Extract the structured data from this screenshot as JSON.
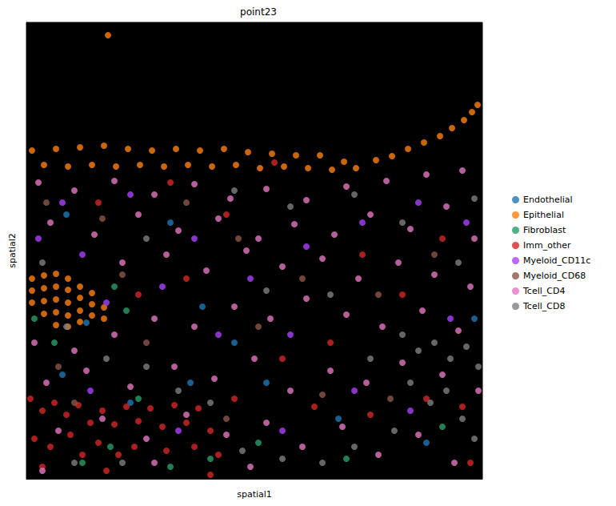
{
  "chart_data": {
    "type": "scatter",
    "title": "point23",
    "x_label": "spatial1",
    "y_label": "spatial2",
    "xlim": [
      0,
      570
    ],
    "ylim": [
      0,
      570
    ],
    "tick_labels": false,
    "grid": false,
    "legend": "right",
    "series": [
      {
        "name": "Endothelial",
        "color": "#1f77b4",
        "values": [
          [
            50,
            330
          ],
          [
            180,
            320
          ],
          [
            220,
            215
          ],
          [
            300,
            120
          ],
          [
            45,
            130
          ],
          [
            130,
            95
          ],
          [
            205,
            120
          ],
          [
            390,
            75
          ],
          [
            500,
            45
          ],
          [
            560,
            200
          ],
          [
            75,
            195
          ],
          [
            260,
            170
          ]
        ]
      },
      {
        "name": "Epithelial",
        "color": "#ff7f0e",
        "values": [
          [
            7,
            410
          ],
          [
            22,
            392
          ],
          [
            37,
            412
          ],
          [
            52,
            390
          ],
          [
            67,
            414
          ],
          [
            82,
            392
          ],
          [
            97,
            416
          ],
          [
            112,
            390
          ],
          [
            127,
            412
          ],
          [
            142,
            392
          ],
          [
            157,
            410
          ],
          [
            172,
            390
          ],
          [
            187,
            412
          ],
          [
            202,
            392
          ],
          [
            217,
            410
          ],
          [
            232,
            390
          ],
          [
            247,
            412
          ],
          [
            262,
            392
          ],
          [
            277,
            408
          ],
          [
            292,
            388
          ],
          [
            307,
            406
          ],
          [
            322,
            390
          ],
          [
            337,
            404
          ],
          [
            352,
            388
          ],
          [
            367,
            404
          ],
          [
            382,
            386
          ],
          [
            397,
            396
          ],
          [
            412,
            388
          ],
          [
            437,
            398
          ],
          [
            457,
            403
          ],
          [
            477,
            412
          ],
          [
            497,
            420
          ],
          [
            517,
            428
          ],
          [
            532,
            438
          ],
          [
            547,
            448
          ],
          [
            557,
            458
          ],
          [
            564,
            467
          ],
          [
            102,
            554
          ],
          [
            7,
            250
          ],
          [
            22,
            254
          ],
          [
            37,
            256
          ],
          [
            52,
            250
          ],
          [
            67,
            240
          ],
          [
            82,
            232
          ],
          [
            7,
            235
          ],
          [
            22,
            238
          ],
          [
            37,
            240
          ],
          [
            52,
            236
          ],
          [
            67,
            226
          ],
          [
            82,
            218
          ],
          [
            97,
            214
          ],
          [
            7,
            220
          ],
          [
            22,
            222
          ],
          [
            37,
            224
          ],
          [
            52,
            220
          ],
          [
            67,
            210
          ],
          [
            82,
            204
          ],
          [
            97,
            200
          ],
          [
            22,
            206
          ],
          [
            37,
            208
          ],
          [
            52,
            204
          ],
          [
            67,
            196
          ],
          [
            37,
            192
          ],
          [
            52,
            190
          ]
        ]
      },
      {
        "name": "Fibroblast",
        "color": "#279e68",
        "values": [
          [
            110,
            240
          ],
          [
            125,
            210
          ],
          [
            10,
            200
          ],
          [
            35,
            170
          ],
          [
            70,
            20
          ],
          [
            105,
            40
          ],
          [
            180,
            15
          ],
          [
            230,
            25
          ],
          [
            290,
            45
          ],
          [
            400,
            25
          ],
          [
            140,
            100
          ],
          [
            520,
            65
          ]
        ]
      },
      {
        "name": "Imm_other",
        "color": "#d62728",
        "values": [
          [
            5,
            100
          ],
          [
            20,
            85
          ],
          [
            35,
            95
          ],
          [
            50,
            80
          ],
          [
            65,
            92
          ],
          [
            80,
            70
          ],
          [
            95,
            85
          ],
          [
            110,
            68
          ],
          [
            125,
            90
          ],
          [
            140,
            72
          ],
          [
            155,
            88
          ],
          [
            170,
            65
          ],
          [
            185,
            92
          ],
          [
            200,
            70
          ],
          [
            215,
            88
          ],
          [
            230,
            60
          ],
          [
            10,
            50
          ],
          [
            30,
            40
          ],
          [
            55,
            55
          ],
          [
            70,
            30
          ],
          [
            90,
            45
          ],
          [
            115,
            30
          ],
          [
            135,
            40
          ],
          [
            175,
            35
          ],
          [
            210,
            40
          ],
          [
            240,
            30
          ],
          [
            260,
            100
          ],
          [
            320,
            150
          ],
          [
            380,
            170
          ],
          [
            420,
            280
          ],
          [
            470,
            230
          ],
          [
            520,
            300
          ],
          [
            545,
            90
          ],
          [
            500,
            100
          ],
          [
            430,
            80
          ],
          [
            360,
            90
          ],
          [
            140,
            230
          ],
          [
            200,
            250
          ],
          [
            250,
            330
          ],
          [
            180,
            370
          ],
          [
            90,
            345
          ],
          [
            310,
            395
          ],
          [
            555,
            20
          ],
          [
            20,
            15
          ],
          [
            100,
            10
          ],
          [
            230,
            5
          ]
        ]
      },
      {
        "name": "Myeloid_CD11c",
        "color": "#aa40fc",
        "values": [
          [
            15,
            300
          ],
          [
            45,
            345
          ],
          [
            130,
            355
          ],
          [
            210,
            300
          ],
          [
            280,
            250
          ],
          [
            350,
            290
          ],
          [
            420,
            320
          ],
          [
            490,
            345
          ],
          [
            550,
            320
          ],
          [
            70,
            280
          ],
          [
            170,
            240
          ],
          [
            240,
            180
          ],
          [
            330,
            180
          ],
          [
            410,
            110
          ],
          [
            480,
            85
          ],
          [
            80,
            110
          ],
          [
            190,
            60
          ],
          [
            320,
            60
          ],
          [
            530,
            200
          ],
          [
            100,
            220
          ]
        ]
      },
      {
        "name": "Myeloid_CD68",
        "color": "#8c564b",
        "values": [
          [
            25,
            345
          ],
          [
            95,
            325
          ],
          [
            200,
            345
          ],
          [
            265,
            300
          ],
          [
            345,
            250
          ],
          [
            440,
            230
          ],
          [
            510,
            280
          ],
          [
            40,
            140
          ],
          [
            150,
            170
          ],
          [
            290,
            190
          ],
          [
            370,
            105
          ],
          [
            60,
            95
          ],
          [
            250,
            75
          ],
          [
            455,
            100
          ],
          [
            120,
            255
          ]
        ]
      },
      {
        "name": "Tcell_CD4",
        "color": "#e377c2",
        "values": [
          [
            15,
            370
          ],
          [
            60,
            360
          ],
          [
            110,
            372
          ],
          [
            160,
            355
          ],
          [
            210,
            368
          ],
          [
            255,
            350
          ],
          [
            300,
            362
          ],
          [
            350,
            348
          ],
          [
            400,
            365
          ],
          [
            450,
            372
          ],
          [
            500,
            380
          ],
          [
            545,
            385
          ],
          [
            30,
            320
          ],
          [
            85,
            305
          ],
          [
            140,
            330
          ],
          [
            190,
            310
          ],
          [
            240,
            325
          ],
          [
            290,
            300
          ],
          [
            335,
            318
          ],
          [
            385,
            305
          ],
          [
            430,
            330
          ],
          [
            480,
            312
          ],
          [
            525,
            340
          ],
          [
            560,
            300
          ],
          [
            120,
            270
          ],
          [
            175,
            280
          ],
          [
            225,
            260
          ],
          [
            275,
            285
          ],
          [
            320,
            265
          ],
          [
            370,
            275
          ],
          [
            415,
            250
          ],
          [
            465,
            270
          ],
          [
            510,
            255
          ],
          [
            555,
            240
          ],
          [
            10,
            170
          ],
          [
            60,
            160
          ],
          [
            110,
            180
          ],
          [
            160,
            200
          ],
          [
            210,
            190
          ],
          [
            260,
            215
          ],
          [
            305,
            200
          ],
          [
            350,
            225
          ],
          [
            400,
            205
          ],
          [
            445,
            190
          ],
          [
            495,
            210
          ],
          [
            540,
            185
          ],
          [
            25,
            120
          ],
          [
            75,
            135
          ],
          [
            130,
            115
          ],
          [
            185,
            140
          ],
          [
            235,
            125
          ],
          [
            285,
            150
          ],
          [
            330,
            110
          ],
          [
            380,
            135
          ],
          [
            425,
            120
          ],
          [
            470,
            145
          ],
          [
            520,
            130
          ],
          [
            565,
            110
          ],
          [
            40,
            60
          ],
          [
            95,
            75
          ],
          [
            150,
            50
          ],
          [
            200,
            80
          ],
          [
            250,
            55
          ],
          [
            300,
            70
          ],
          [
            345,
            40
          ],
          [
            395,
            65
          ],
          [
            440,
            30
          ],
          [
            490,
            55
          ],
          [
            535,
            20
          ],
          [
            20,
            10
          ],
          [
            280,
            15
          ],
          [
            160,
            20
          ]
        ]
      },
      {
        "name": "Tcell_CD8",
        "color": "#7f7f7f",
        "values": [
          [
            470,
            180
          ],
          [
            490,
            160
          ],
          [
            510,
            170
          ],
          [
            530,
            150
          ],
          [
            550,
            165
          ],
          [
            565,
            140
          ],
          [
            480,
            120
          ],
          [
            505,
            95
          ],
          [
            525,
            110
          ],
          [
            545,
            75
          ],
          [
            560,
            50
          ],
          [
            460,
            60
          ],
          [
            410,
            40
          ],
          [
            370,
            20
          ],
          [
            320,
            25
          ],
          [
            270,
            35
          ],
          [
            230,
            95
          ],
          [
            190,
            110
          ],
          [
            150,
            140
          ],
          [
            100,
            150
          ],
          [
            50,
            190
          ],
          [
            20,
            270
          ],
          [
            150,
            300
          ],
          [
            260,
            360
          ],
          [
            330,
            340
          ],
          [
            410,
            355
          ],
          [
            470,
            320
          ],
          [
            540,
            270
          ],
          [
            380,
            230
          ],
          [
            300,
            235
          ],
          [
            120,
            20
          ],
          [
            60,
            20
          ],
          [
            430,
            150
          ],
          [
            560,
            350
          ]
        ]
      }
    ]
  }
}
